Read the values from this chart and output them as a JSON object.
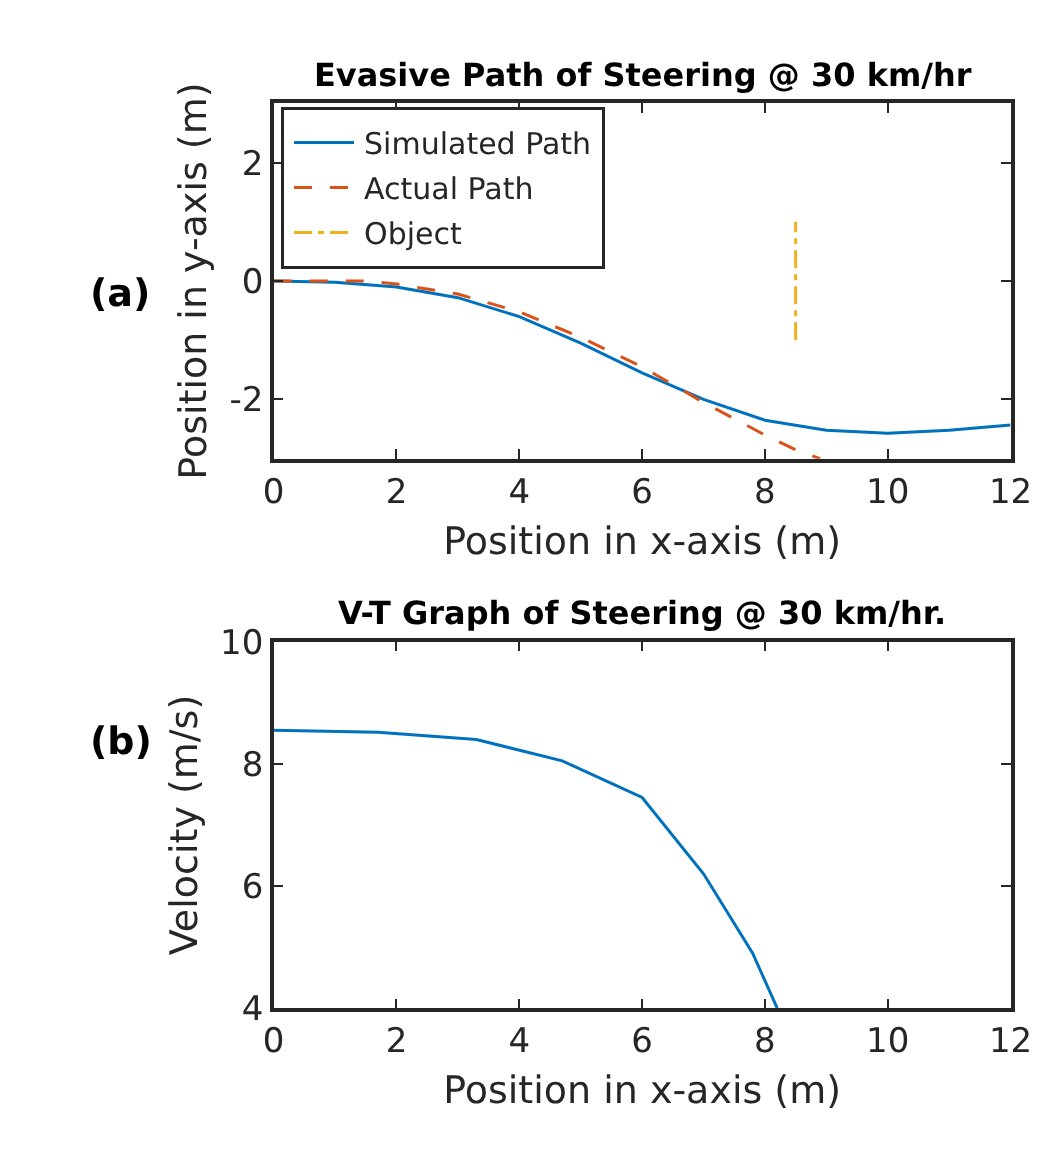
{
  "chart_data": [
    {
      "type": "line",
      "title": "Evasive Path of Steering @ 30 km/hr",
      "xlabel": "Position in x-axis (m)",
      "ylabel": "Position in y-axis (m)",
      "annotations": [
        "(a)"
      ],
      "series": [
        {
          "name": "Simulated Path",
          "color": "#0072bd",
          "line_style": "solid",
          "x": [
            0,
            1,
            2,
            3,
            4,
            5,
            6,
            7,
            8,
            9,
            10,
            11,
            12
          ],
          "values": [
            0,
            -0.02,
            -0.1,
            -0.28,
            -0.6,
            -1.05,
            -1.55,
            -2.0,
            -2.35,
            -2.52,
            -2.57,
            -2.52,
            -2.43
          ]
        },
        {
          "name": "Actual Path",
          "color": "#d95319",
          "line_style": "dashed",
          "x": [
            0,
            1.5,
            2,
            3,
            4,
            5,
            6,
            6.5,
            7,
            8,
            8.5,
            8.9
          ],
          "values": [
            0,
            0,
            -0.05,
            -0.22,
            -0.52,
            -0.95,
            -1.45,
            -1.75,
            -2.05,
            -2.6,
            -2.85,
            -3.0
          ]
        },
        {
          "name": "Object",
          "color": "#edb120",
          "line_style": "dashdot",
          "x": [
            8.5,
            8.5
          ],
          "values": [
            -1,
            1
          ]
        }
      ],
      "xlim": [
        0,
        12
      ],
      "xticks": [
        0,
        2,
        4,
        6,
        8,
        10,
        12
      ],
      "ylim": [
        -3,
        3
      ],
      "yticks": [
        -2,
        0,
        2
      ],
      "legend": "top left"
    },
    {
      "type": "line",
      "title": "V-T Graph of Steering @ 30 km/hr.",
      "xlabel": "Position in x-axis (m)",
      "ylabel": "Velocity (m/s)",
      "annotations": [
        "(b)"
      ],
      "series": [
        {
          "color": "#0072bd",
          "x": [
            0,
            1.7,
            3.3,
            4.7,
            6,
            7,
            7.8,
            8.2
          ],
          "values": [
            8.55,
            8.52,
            8.4,
            8.05,
            7.45,
            6.2,
            4.9,
            4.0
          ]
        }
      ],
      "xlim": [
        0,
        12
      ],
      "xticks": [
        0,
        2,
        4,
        6,
        8,
        10,
        12
      ],
      "ylim": [
        4,
        10
      ],
      "yticks": [
        4,
        6,
        8,
        10
      ]
    }
  ]
}
